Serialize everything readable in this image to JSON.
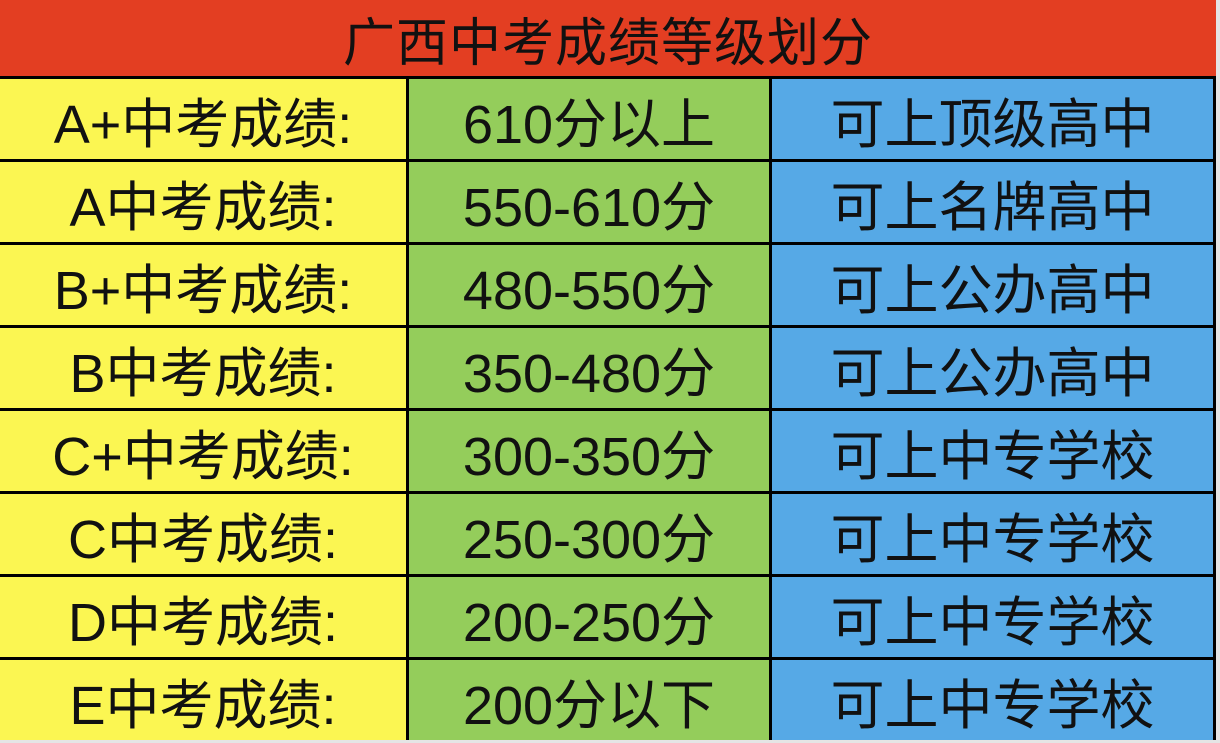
{
  "title": "广西中考成绩等级划分",
  "colors": {
    "header": "#e33e22",
    "grade_column": "#fbf652",
    "score_column": "#94cd5b",
    "school_column": "#56a9e6"
  },
  "rows": [
    {
      "grade": "A+中考成绩:",
      "score": "610分以上",
      "school": "可上顶级高中"
    },
    {
      "grade": "A中考成绩:",
      "score": "550-610分",
      "school": "可上名牌高中"
    },
    {
      "grade": "B+中考成绩:",
      "score": "480-550分",
      "school": "可上公办高中"
    },
    {
      "grade": "B中考成绩:",
      "score": "350-480分",
      "school": "可上公办高中"
    },
    {
      "grade": "C+中考成绩:",
      "score": "300-350分",
      "school": "可上中专学校"
    },
    {
      "grade": "C中考成绩:",
      "score": "250-300分",
      "school": "可上中专学校"
    },
    {
      "grade": "D中考成绩:",
      "score": "200-250分",
      "school": "可上中专学校"
    },
    {
      "grade": "E中考成绩:",
      "score": "200分以下",
      "school": "可上中专学校"
    }
  ]
}
